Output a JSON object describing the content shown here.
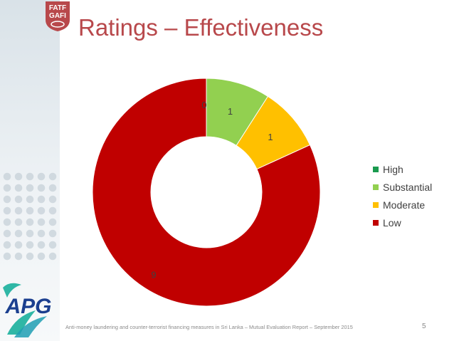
{
  "slide": {
    "title": "Ratings – Effectiveness",
    "footer": "Anti-money laundering and counter-terrorist financing measures in Sri Lanka – Mutual Evaluation Report – September 2015",
    "page_number": "5",
    "logo_top_text_1": "FATF",
    "logo_top_text_2": "GAFI",
    "logo_bottom_text": "APG"
  },
  "colors": {
    "title": "#b8484b",
    "High": "#1a9a4f",
    "Substantial": "#92d050",
    "Moderate": "#ffc000",
    "Low": "#c00000"
  },
  "chart_data": {
    "type": "pie",
    "style": "doughnut",
    "title": "",
    "categories": [
      "High",
      "Substantial",
      "Moderate",
      "Low"
    ],
    "values": [
      0,
      1,
      1,
      9
    ],
    "data_labels": [
      "0",
      "1",
      "1",
      "9"
    ],
    "legend": "right"
  }
}
